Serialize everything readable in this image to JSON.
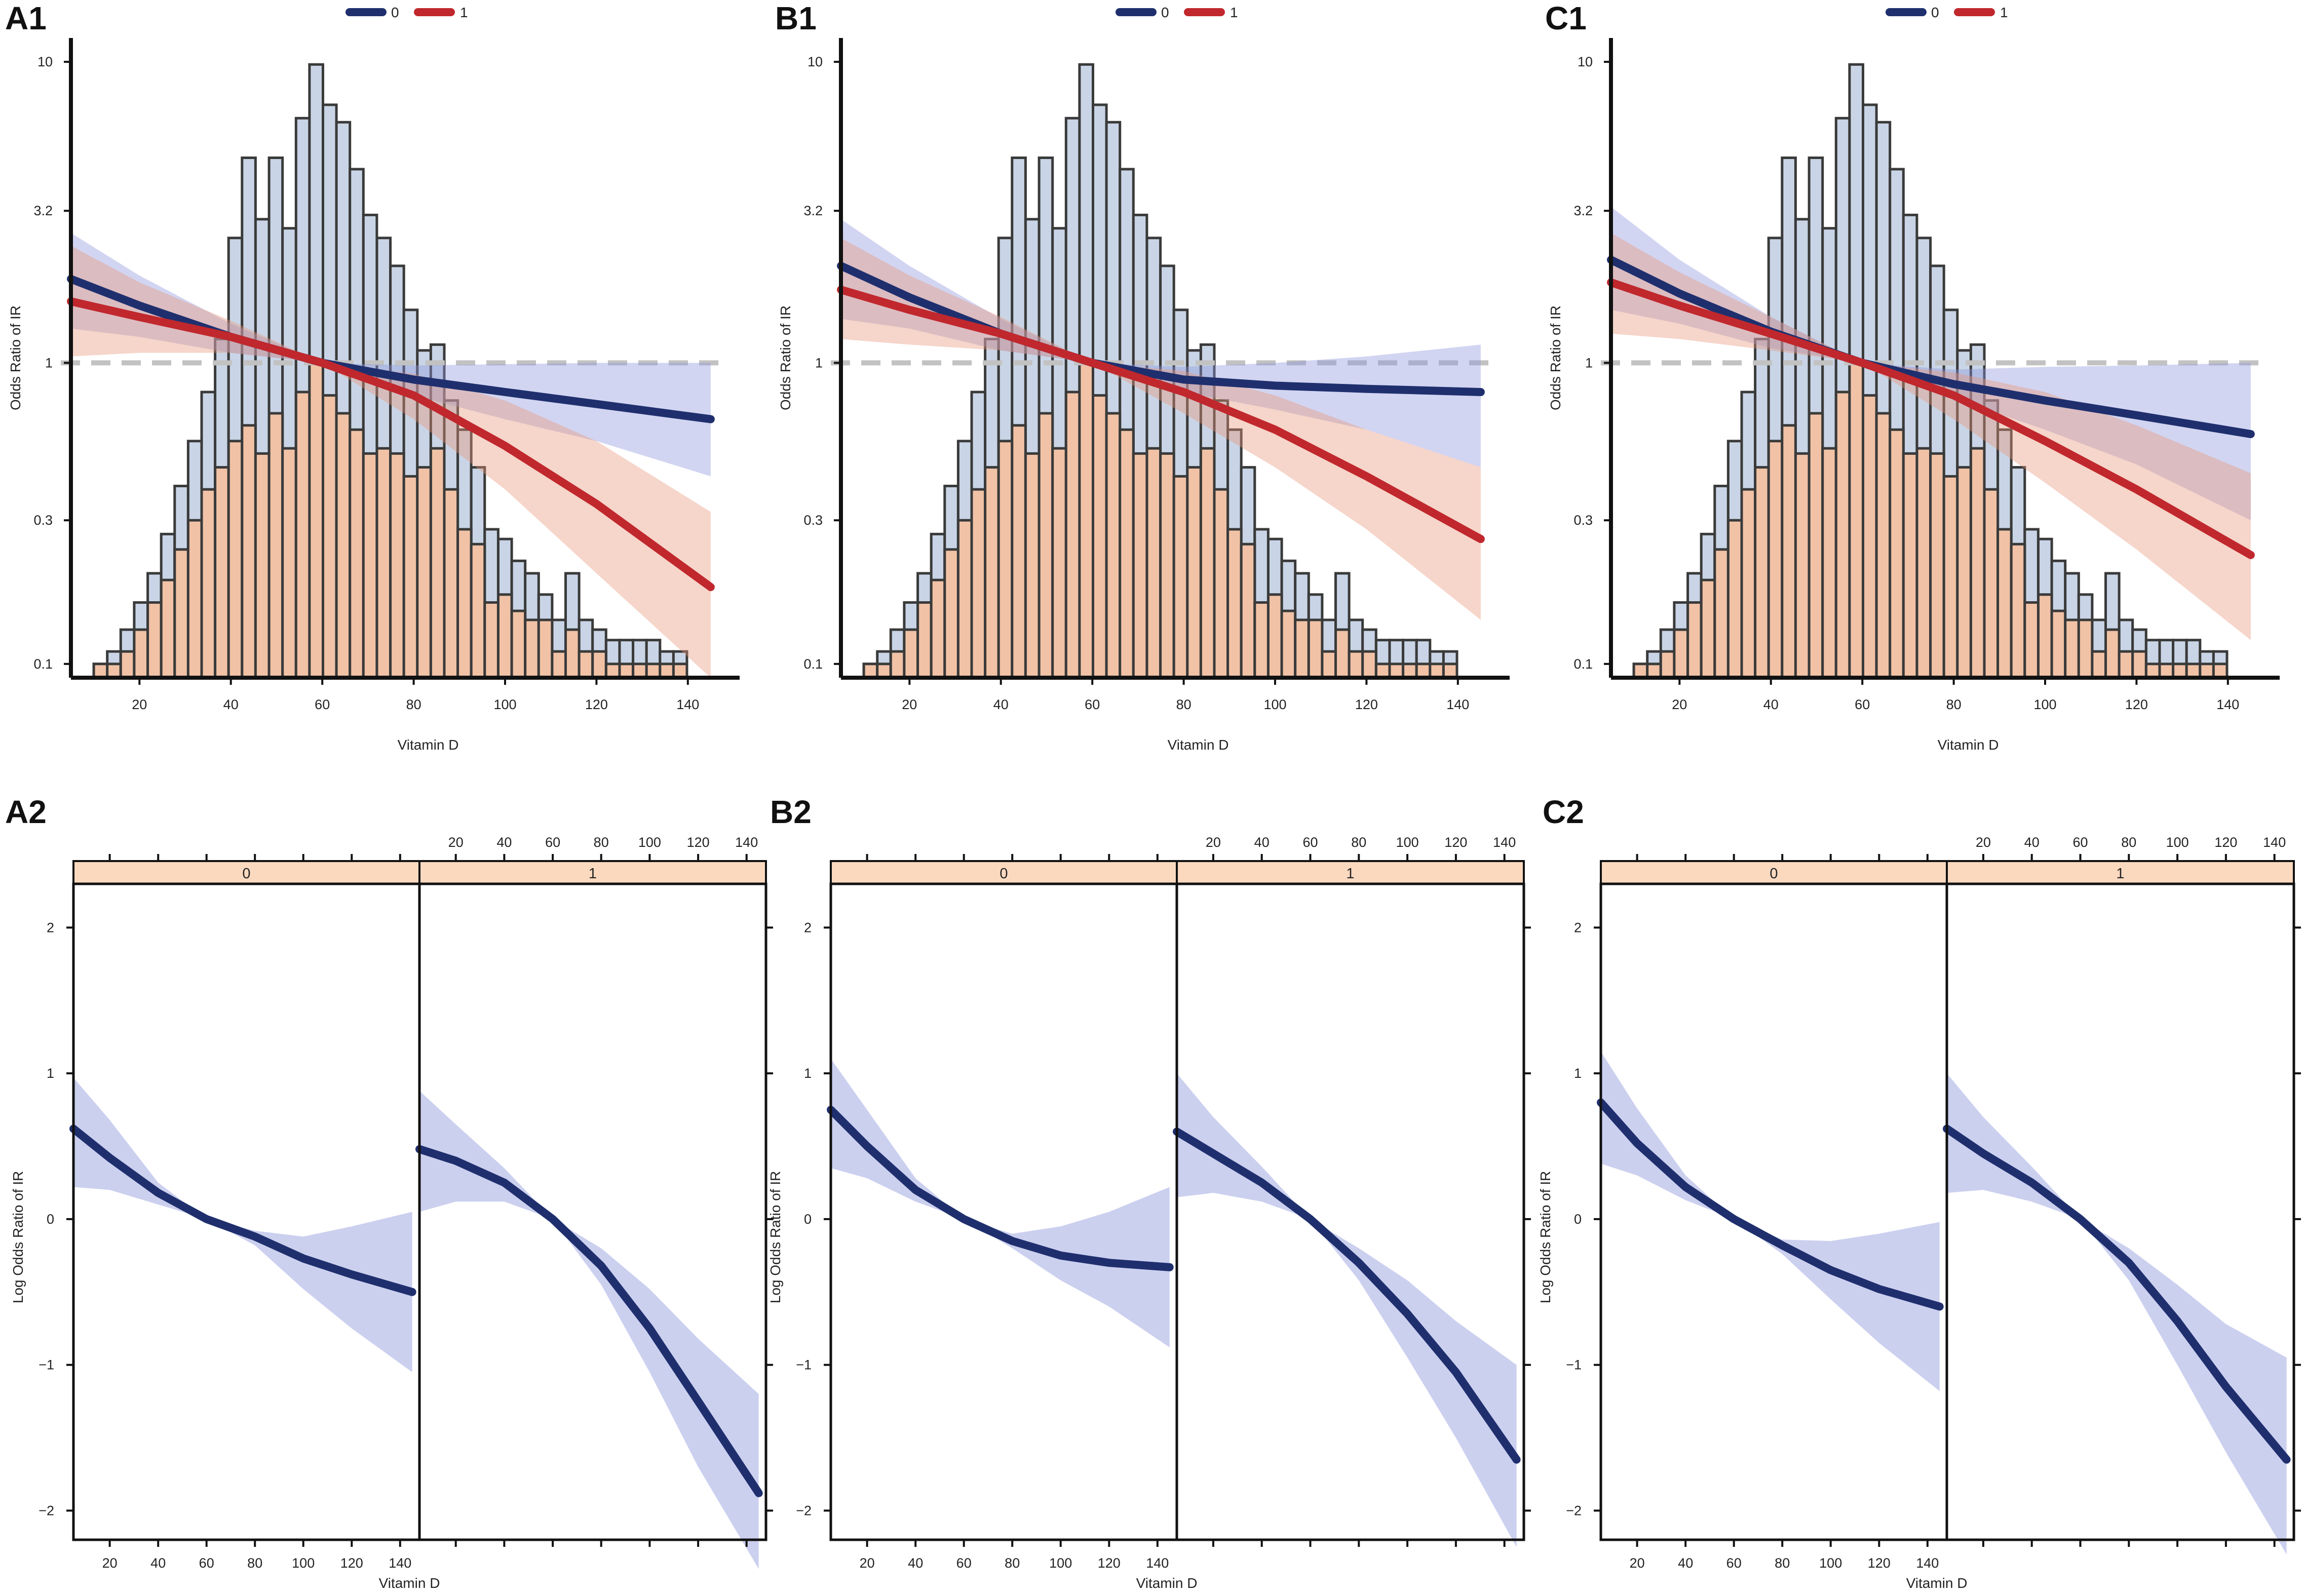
{
  "colors": {
    "group0_line": "#1f2f6e",
    "group1_line": "#c0282d",
    "group0_band": "#8e96dc",
    "group1_band": "#e8967a",
    "hist_all": "#c9d5e6",
    "hist_group1": "#f1c2a6",
    "hist_edge": "#3a3a3a",
    "reference_line": "#c2c2c2",
    "strip": "#fbd9bf"
  },
  "chart_data": [
    {
      "id": "A1",
      "panel_label": "A1",
      "type": "line",
      "title": "",
      "xlabel": "Vitamin D",
      "ylabel": "Odds Ratio of IR",
      "xlim": [
        5,
        148
      ],
      "ylim_log": [
        0.09,
        12
      ],
      "x_ticks": [
        20,
        40,
        60,
        80,
        100,
        120,
        140
      ],
      "x_tick_labels": [
        "20",
        "40",
        "60",
        "80",
        "100",
        "120",
        "140"
      ],
      "y_ticks": [
        0.1,
        0.3,
        1,
        3.2,
        10
      ],
      "y_tick_labels": [
        "0.1",
        "0.3",
        "1",
        "3.2",
        "10"
      ],
      "reference_y": 1,
      "legend": {
        "entries": [
          "0",
          "1"
        ],
        "position": "top-center"
      },
      "histogram": {
        "bin_start": 10,
        "bin_width": 2.95,
        "all_heights_or": [
          0.1,
          0.11,
          0.13,
          0.16,
          0.2,
          0.27,
          0.39,
          0.55,
          0.8,
          1.2,
          2.6,
          4.8,
          3.0,
          4.8,
          2.8,
          6.5,
          9.8,
          7.2,
          6.3,
          4.4,
          3.1,
          2.6,
          2.1,
          1.5,
          1.1,
          1.15,
          0.75,
          0.6,
          0.45,
          0.28,
          0.26,
          0.22,
          0.2,
          0.17,
          0.14,
          0.2,
          0.14,
          0.13,
          0.12,
          0.12,
          0.12,
          0.12,
          0.11,
          0.11
        ],
        "group1_heights_or": [
          0.1,
          0.1,
          0.11,
          0.13,
          0.16,
          0.19,
          0.24,
          0.3,
          0.38,
          0.45,
          0.55,
          0.62,
          0.5,
          0.68,
          0.52,
          0.8,
          1.0,
          0.78,
          0.68,
          0.6,
          0.5,
          0.52,
          0.5,
          0.42,
          0.45,
          0.52,
          0.38,
          0.28,
          0.25,
          0.16,
          0.17,
          0.15,
          0.14,
          0.14,
          0.11,
          0.13,
          0.11,
          0.11,
          0.1,
          0.1,
          0.1,
          0.1,
          0.1,
          0.1
        ]
      },
      "series": [
        {
          "name": "0",
          "x": [
            5,
            20,
            40,
            60,
            80,
            100,
            120,
            145
          ],
          "or": [
            1.9,
            1.55,
            1.22,
            1.0,
            0.88,
            0.8,
            0.73,
            0.65
          ],
          "lower": [
            1.3,
            1.22,
            1.08,
            1.0,
            0.78,
            0.65,
            0.55,
            0.42
          ],
          "upper": [
            2.7,
            1.95,
            1.35,
            1.0,
            0.98,
            0.99,
            1.0,
            1.0
          ]
        },
        {
          "name": "1",
          "x": [
            5,
            20,
            40,
            60,
            80,
            100,
            120,
            145
          ],
          "or": [
            1.6,
            1.42,
            1.22,
            1.0,
            0.78,
            0.53,
            0.34,
            0.18
          ],
          "lower": [
            1.05,
            1.08,
            1.08,
            1.0,
            0.65,
            0.38,
            0.2,
            0.09
          ],
          "upper": [
            2.45,
            1.85,
            1.38,
            1.0,
            0.92,
            0.75,
            0.55,
            0.32
          ]
        }
      ]
    },
    {
      "id": "B1",
      "panel_label": "B1",
      "type": "line",
      "title": "",
      "xlabel": "Vitamin D",
      "ylabel": "Odds Ratio of IR",
      "xlim": [
        5,
        148
      ],
      "ylim_log": [
        0.09,
        12
      ],
      "x_ticks": [
        20,
        40,
        60,
        80,
        100,
        120,
        140
      ],
      "x_tick_labels": [
        "20",
        "40",
        "60",
        "80",
        "100",
        "120",
        "140"
      ],
      "y_ticks": [
        0.1,
        0.3,
        1,
        3.2,
        10
      ],
      "y_tick_labels": [
        "0.1",
        "0.3",
        "1",
        "3.2",
        "10"
      ],
      "reference_y": 1,
      "legend": {
        "entries": [
          "0",
          "1"
        ],
        "position": "top-center"
      },
      "histogram": {
        "bin_start": 10,
        "bin_width": 2.95,
        "all_heights_or": [
          0.1,
          0.11,
          0.13,
          0.16,
          0.2,
          0.27,
          0.39,
          0.55,
          0.8,
          1.2,
          2.6,
          4.8,
          3.0,
          4.8,
          2.8,
          6.5,
          9.8,
          7.2,
          6.3,
          4.4,
          3.1,
          2.6,
          2.1,
          1.5,
          1.1,
          1.15,
          0.75,
          0.6,
          0.45,
          0.28,
          0.26,
          0.22,
          0.2,
          0.17,
          0.14,
          0.2,
          0.14,
          0.13,
          0.12,
          0.12,
          0.12,
          0.12,
          0.11,
          0.11
        ],
        "group1_heights_or": [
          0.1,
          0.1,
          0.11,
          0.13,
          0.16,
          0.19,
          0.24,
          0.3,
          0.38,
          0.45,
          0.55,
          0.62,
          0.5,
          0.68,
          0.52,
          0.8,
          1.0,
          0.78,
          0.68,
          0.6,
          0.5,
          0.52,
          0.5,
          0.42,
          0.45,
          0.52,
          0.38,
          0.28,
          0.25,
          0.16,
          0.17,
          0.15,
          0.14,
          0.14,
          0.11,
          0.13,
          0.11,
          0.11,
          0.1,
          0.1,
          0.1,
          0.1,
          0.1,
          0.1
        ]
      },
      "series": [
        {
          "name": "0",
          "x": [
            5,
            20,
            40,
            60,
            80,
            100,
            120,
            145
          ],
          "or": [
            2.1,
            1.65,
            1.25,
            1.0,
            0.88,
            0.84,
            0.82,
            0.8
          ],
          "lower": [
            1.4,
            1.3,
            1.1,
            1.0,
            0.8,
            0.7,
            0.6,
            0.45
          ],
          "upper": [
            3.0,
            2.1,
            1.4,
            1.0,
            0.97,
            1.0,
            1.05,
            1.15
          ]
        },
        {
          "name": "1",
          "x": [
            5,
            20,
            40,
            60,
            80,
            100,
            120,
            145
          ],
          "or": [
            1.75,
            1.5,
            1.25,
            1.0,
            0.8,
            0.6,
            0.42,
            0.26
          ],
          "lower": [
            1.2,
            1.15,
            1.1,
            1.0,
            0.68,
            0.45,
            0.28,
            0.14
          ],
          "upper": [
            2.6,
            1.95,
            1.42,
            1.0,
            0.94,
            0.78,
            0.6,
            0.45
          ]
        }
      ]
    },
    {
      "id": "C1",
      "panel_label": "C1",
      "type": "line",
      "title": "",
      "xlabel": "Vitamin D",
      "ylabel": "Odds Ratio of IR",
      "xlim": [
        5,
        148
      ],
      "ylim_log": [
        0.09,
        12
      ],
      "x_ticks": [
        20,
        40,
        60,
        80,
        100,
        120,
        140
      ],
      "x_tick_labels": [
        "20",
        "40",
        "60",
        "80",
        "100",
        "120",
        "140"
      ],
      "y_ticks": [
        0.1,
        0.3,
        1,
        3.2,
        10
      ],
      "y_tick_labels": [
        "0.1",
        "0.3",
        "1",
        "3.2",
        "10"
      ],
      "reference_y": 1,
      "legend": {
        "entries": [
          "0",
          "1"
        ],
        "position": "top-center"
      },
      "histogram": {
        "bin_start": 10,
        "bin_width": 2.95,
        "all_heights_or": [
          0.1,
          0.11,
          0.13,
          0.16,
          0.2,
          0.27,
          0.39,
          0.55,
          0.8,
          1.2,
          2.6,
          4.8,
          3.0,
          4.8,
          2.8,
          6.5,
          9.8,
          7.2,
          6.3,
          4.4,
          3.1,
          2.6,
          2.1,
          1.5,
          1.1,
          1.15,
          0.75,
          0.6,
          0.45,
          0.28,
          0.26,
          0.22,
          0.2,
          0.17,
          0.14,
          0.2,
          0.14,
          0.13,
          0.12,
          0.12,
          0.12,
          0.12,
          0.11,
          0.11
        ],
        "group1_heights_or": [
          0.1,
          0.1,
          0.11,
          0.13,
          0.16,
          0.19,
          0.24,
          0.3,
          0.38,
          0.45,
          0.55,
          0.62,
          0.5,
          0.68,
          0.52,
          0.8,
          1.0,
          0.78,
          0.68,
          0.6,
          0.5,
          0.52,
          0.5,
          0.42,
          0.45,
          0.52,
          0.38,
          0.28,
          0.25,
          0.16,
          0.17,
          0.15,
          0.14,
          0.14,
          0.11,
          0.13,
          0.11,
          0.11,
          0.1,
          0.1,
          0.1,
          0.1,
          0.1,
          0.1
        ]
      },
      "series": [
        {
          "name": "0",
          "x": [
            5,
            20,
            40,
            60,
            80,
            100,
            120,
            145
          ],
          "or": [
            2.2,
            1.7,
            1.27,
            1.0,
            0.85,
            0.75,
            0.67,
            0.58
          ],
          "lower": [
            1.5,
            1.35,
            1.12,
            1.0,
            0.76,
            0.6,
            0.46,
            0.3
          ],
          "upper": [
            3.3,
            2.2,
            1.42,
            1.0,
            0.95,
            0.97,
            0.98,
            1.0
          ]
        },
        {
          "name": "1",
          "x": [
            5,
            20,
            40,
            60,
            80,
            100,
            120,
            145
          ],
          "or": [
            1.85,
            1.55,
            1.25,
            1.0,
            0.78,
            0.55,
            0.38,
            0.23
          ],
          "lower": [
            1.25,
            1.2,
            1.1,
            1.0,
            0.65,
            0.4,
            0.24,
            0.12
          ],
          "upper": [
            2.7,
            2.0,
            1.42,
            1.0,
            0.93,
            0.8,
            0.62,
            0.43
          ]
        }
      ]
    },
    {
      "id": "A2",
      "panel_label": "A2",
      "type": "line",
      "title": "",
      "xlabel": "Vitamin D",
      "ylabel": "Log Odds Ratio of IR",
      "xlim": [
        5,
        148
      ],
      "ylim": [
        -2.2,
        2.3
      ],
      "y_ticks": [
        -2,
        -1,
        0,
        1,
        2
      ],
      "y_tick_labels": [
        "−2",
        "−1",
        "0",
        "1",
        "2"
      ],
      "x_ticks": [
        20,
        40,
        60,
        80,
        100,
        120,
        140
      ],
      "x_tick_labels": [
        "20",
        "40",
        "60",
        "80",
        "100",
        "120",
        "140"
      ],
      "facets": [
        {
          "strip_label": "0",
          "x": [
            5,
            20,
            40,
            60,
            80,
            100,
            120,
            145
          ],
          "y": [
            0.62,
            0.42,
            0.18,
            0.0,
            -0.12,
            -0.27,
            -0.38,
            -0.5
          ],
          "lower": [
            0.22,
            0.2,
            0.1,
            0.0,
            -0.18,
            -0.48,
            -0.75,
            -1.05
          ],
          "upper": [
            0.97,
            0.68,
            0.25,
            0.0,
            -0.08,
            -0.12,
            -0.05,
            0.05
          ]
        },
        {
          "strip_label": "1",
          "x": [
            5,
            20,
            40,
            60,
            80,
            100,
            120,
            145
          ],
          "y": [
            0.48,
            0.4,
            0.25,
            0.0,
            -0.32,
            -0.75,
            -1.25,
            -1.88
          ],
          "lower": [
            0.05,
            0.12,
            0.12,
            0.0,
            -0.45,
            -1.05,
            -1.7,
            -2.4
          ],
          "upper": [
            0.88,
            0.65,
            0.35,
            0.0,
            -0.2,
            -0.48,
            -0.82,
            -1.2
          ]
        }
      ]
    },
    {
      "id": "B2",
      "panel_label": "B2",
      "type": "line",
      "title": "",
      "xlabel": "Vitamin D",
      "ylabel": "Log Odds Ratio of IR",
      "xlim": [
        5,
        148
      ],
      "ylim": [
        -2.2,
        2.3
      ],
      "y_ticks": [
        -2,
        -1,
        0,
        1,
        2
      ],
      "y_tick_labels": [
        "−2",
        "−1",
        "0",
        "1",
        "2"
      ],
      "x_ticks": [
        20,
        40,
        60,
        80,
        100,
        120,
        140
      ],
      "x_tick_labels": [
        "20",
        "40",
        "60",
        "80",
        "100",
        "120",
        "140"
      ],
      "facets": [
        {
          "strip_label": "0",
          "x": [
            5,
            20,
            40,
            60,
            80,
            100,
            120,
            145
          ],
          "y": [
            0.75,
            0.5,
            0.2,
            0.0,
            -0.15,
            -0.25,
            -0.3,
            -0.33
          ],
          "lower": [
            0.35,
            0.28,
            0.12,
            0.0,
            -0.2,
            -0.42,
            -0.6,
            -0.88
          ],
          "upper": [
            1.1,
            0.75,
            0.28,
            0.0,
            -0.1,
            -0.05,
            0.05,
            0.22
          ]
        },
        {
          "strip_label": "1",
          "x": [
            5,
            20,
            40,
            60,
            80,
            100,
            120,
            145
          ],
          "y": [
            0.6,
            0.45,
            0.25,
            0.0,
            -0.3,
            -0.65,
            -1.05,
            -1.65
          ],
          "lower": [
            0.15,
            0.18,
            0.12,
            0.0,
            -0.42,
            -0.95,
            -1.5,
            -2.25
          ],
          "upper": [
            1.0,
            0.7,
            0.36,
            0.0,
            -0.2,
            -0.42,
            -0.7,
            -1.0
          ]
        }
      ]
    },
    {
      "id": "C2",
      "panel_label": "C2",
      "type": "line",
      "title": "",
      "xlabel": "Vitamin D",
      "ylabel": "Log Odds Ratio of IR",
      "xlim": [
        5,
        148
      ],
      "ylim": [
        -2.2,
        2.3
      ],
      "y_ticks": [
        -2,
        -1,
        0,
        1,
        2
      ],
      "y_tick_labels": [
        "−2",
        "−1",
        "0",
        "1",
        "2"
      ],
      "x_ticks": [
        20,
        40,
        60,
        80,
        100,
        120,
        140
      ],
      "x_tick_labels": [
        "20",
        "40",
        "60",
        "80",
        "100",
        "120",
        "140"
      ],
      "facets": [
        {
          "strip_label": "0",
          "x": [
            5,
            20,
            40,
            60,
            80,
            100,
            120,
            145
          ],
          "y": [
            0.8,
            0.52,
            0.22,
            0.0,
            -0.18,
            -0.35,
            -0.48,
            -0.6
          ],
          "lower": [
            0.38,
            0.3,
            0.13,
            0.0,
            -0.24,
            -0.55,
            -0.85,
            -1.18
          ],
          "upper": [
            1.15,
            0.76,
            0.3,
            0.0,
            -0.14,
            -0.15,
            -0.1,
            -0.02
          ]
        },
        {
          "strip_label": "1",
          "x": [
            5,
            20,
            40,
            60,
            80,
            100,
            120,
            145
          ],
          "y": [
            0.62,
            0.45,
            0.25,
            0.0,
            -0.3,
            -0.7,
            -1.15,
            -1.65
          ],
          "lower": [
            0.18,
            0.2,
            0.12,
            0.0,
            -0.42,
            -1.0,
            -1.6,
            -2.3
          ],
          "upper": [
            1.0,
            0.7,
            0.36,
            0.0,
            -0.2,
            -0.45,
            -0.72,
            -0.95
          ]
        }
      ]
    }
  ]
}
